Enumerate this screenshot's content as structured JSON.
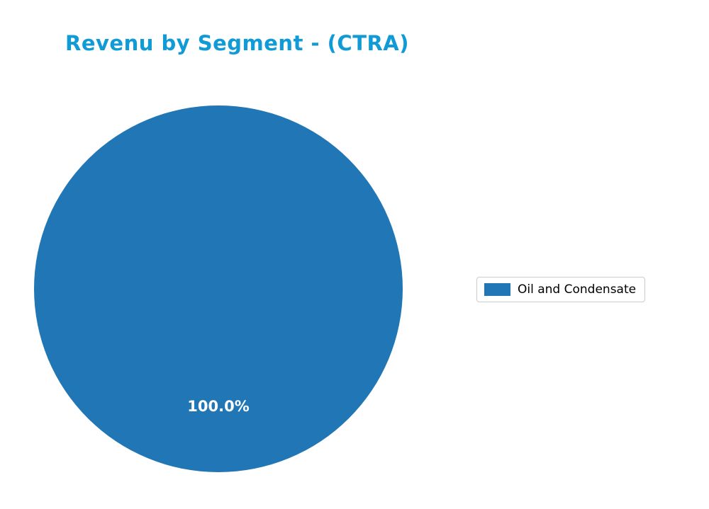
{
  "chart_data": {
    "type": "pie",
    "title": "Revenu by Segment - (CTRA)",
    "labels": [
      "Oil and Condensate"
    ],
    "values": [
      100.0
    ],
    "value_labels": [
      "100.0%"
    ],
    "colors": [
      "#2176b5"
    ],
    "title_color": "#109bd6",
    "pct_label_color": "#ffffff",
    "legend_position": "right",
    "background_color": "#ffffff"
  },
  "legend": {
    "items": [
      {
        "label": "Oil and Condensate",
        "color": "#2176b5"
      }
    ]
  }
}
